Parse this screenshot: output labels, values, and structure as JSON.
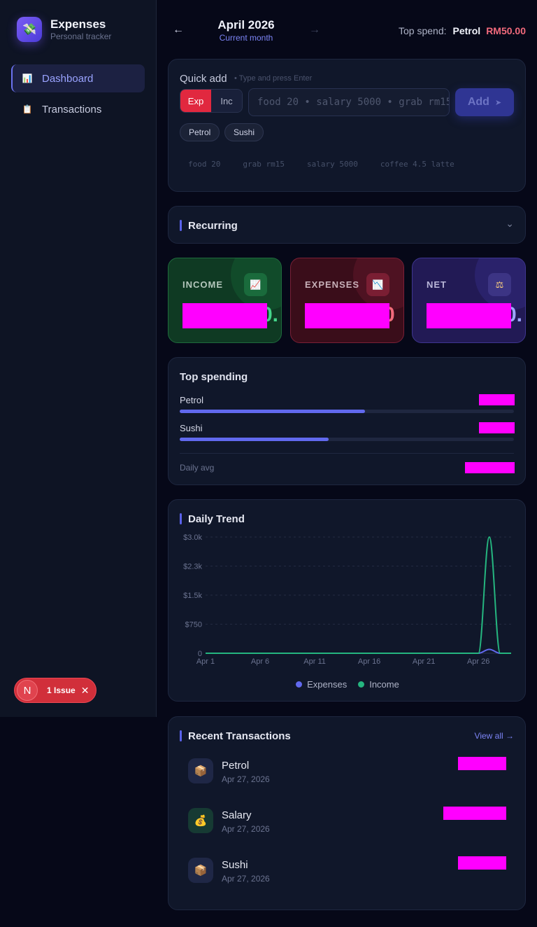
{
  "app": {
    "title": "Expenses",
    "subtitle": "Personal tracker",
    "logo_icon": "money-with-wings-icon"
  },
  "sidebar": {
    "items": [
      {
        "label": "Dashboard",
        "icon": "bar-chart-icon",
        "active": true
      },
      {
        "label": "Transactions",
        "icon": "receipt-icon",
        "active": false
      }
    ]
  },
  "issue_badge": {
    "letter": "N",
    "label": "1 Issue"
  },
  "header": {
    "prev_icon": "←",
    "next_icon": "→",
    "month": "April 2026",
    "month_sub": "Current month",
    "top_spend_label": "Top spend:",
    "top_spend_category": "Petrol",
    "top_spend_amount": "RM50.00"
  },
  "quick_add": {
    "title": "Quick add",
    "hint": "• Type and press Enter",
    "type_expense": "Exp",
    "type_income": "Inc",
    "selected_type": "Exp",
    "input_value": "",
    "input_placeholder": "food 20  •  salary 5000  •  grab rm15",
    "add_label": "Add",
    "chips": [
      "Petrol",
      "Sushi"
    ],
    "examples": [
      "food 20",
      "grab rm15",
      "salary 5000",
      "coffee 4.5 latte"
    ]
  },
  "recurring": {
    "title": "Recurring"
  },
  "stats": {
    "income": {
      "label": "INCOME",
      "value_tail": "0.",
      "icon": "chart-up-icon"
    },
    "expenses": {
      "label": "EXPENSES",
      "value_tail": "0",
      "icon": "chart-down-icon"
    },
    "net": {
      "label": "NET",
      "value_tail": "0.",
      "icon": "scales-icon"
    }
  },
  "top_spending": {
    "title": "Top spending",
    "rows": [
      {
        "label": "Petrol",
        "fraction": 0.555
      },
      {
        "label": "Sushi",
        "fraction": 0.445
      }
    ],
    "daily_avg_label": "Daily avg"
  },
  "daily_trend": {
    "title": "Daily Trend",
    "legend": [
      {
        "name": "Expenses",
        "color": "#6169ee"
      },
      {
        "name": "Income",
        "color": "#25b57f"
      }
    ]
  },
  "chart_data": {
    "type": "line",
    "x_ticks": [
      "Apr 1",
      "Apr 6",
      "Apr 11",
      "Apr 16",
      "Apr 21",
      "Apr 26"
    ],
    "y_ticks": [
      "0",
      "$750",
      "$1.5k",
      "$2.3k",
      "$3.0k"
    ],
    "ylim": [
      0,
      3000
    ],
    "grid": true,
    "legend_position": "bottom",
    "series": [
      {
        "name": "Expenses",
        "color": "#6169ee",
        "points": [
          [
            26,
            0
          ],
          [
            27,
            100
          ],
          [
            28,
            0
          ]
        ]
      },
      {
        "name": "Income",
        "color": "#25b57f",
        "points": [
          [
            26,
            0
          ],
          [
            27,
            3000
          ],
          [
            28,
            0
          ]
        ]
      }
    ]
  },
  "recent": {
    "title": "Recent Transactions",
    "view_all": "View all →",
    "items": [
      {
        "name": "Petrol",
        "date": "Apr 27, 2026",
        "icon": "package-icon",
        "kind": "expense"
      },
      {
        "name": "Salary",
        "date": "Apr 27, 2026",
        "icon": "money-bag-icon",
        "kind": "income"
      },
      {
        "name": "Sushi",
        "date": "Apr 27, 2026",
        "icon": "package-icon",
        "kind": "expense"
      }
    ]
  }
}
